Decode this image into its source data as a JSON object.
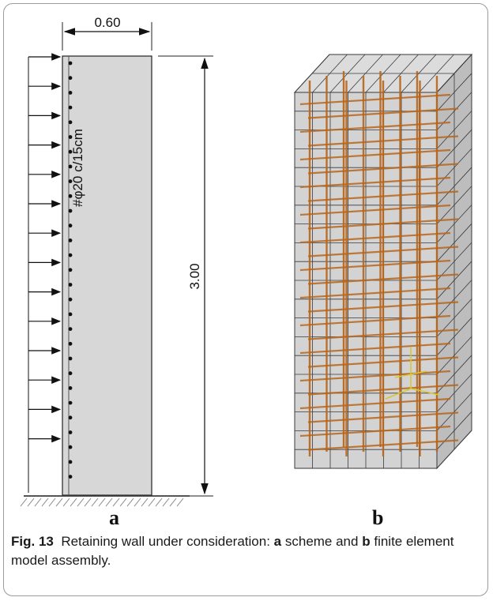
{
  "figure": {
    "panel_a": {
      "label": "a",
      "width_dim": "0.60",
      "height_dim": "3.00",
      "rebar_note": "#φ20 c/15cm"
    },
    "panel_b": {
      "label": "b"
    },
    "caption": {
      "fig_label": "Fig. 13",
      "text_before_a": "Retaining wall under consideration:",
      "a_marker": "a",
      "text_between": "scheme and",
      "b_marker": "b",
      "text_after_b": "finite element model assembly."
    }
  },
  "colors": {
    "wall_fill": "#d7d7d7",
    "rebar": "#b8661c",
    "mesh_line": "#3a3a3a",
    "axes_yellow": "#d8c62a"
  }
}
